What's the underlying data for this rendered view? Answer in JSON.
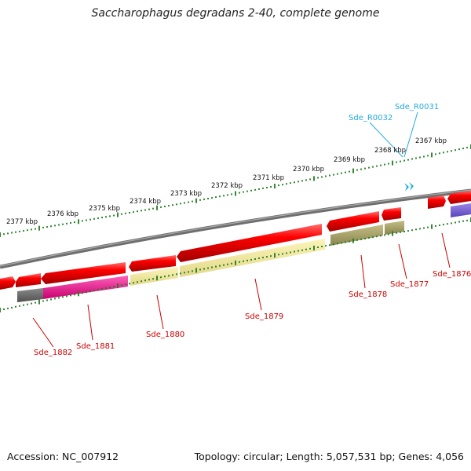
{
  "title": "Saccharophagus degradans 2-40, complete genome",
  "accession_text": "Accession: NC_007912",
  "summary_text": "Topology: circular; Length: 5,057,531 bp; Genes: 4,056",
  "colors": {
    "backbone": "#808080",
    "ruler": "#1e7a1e",
    "gene_label": "#cc0000",
    "rna_label": "#22aadd"
  },
  "kbp_labels": [
    "2377 kbp",
    "2376 kbp",
    "2375 kbp",
    "2374 kbp",
    "2373 kbp",
    "2372 kbp",
    "2371 kbp",
    "2370 kbp",
    "2369 kbp",
    "2368 kbp",
    "2367 kbp"
  ],
  "gene_labels": [
    "Sde_1882",
    "Sde_1881",
    "Sde_1880",
    "Sde_1879",
    "Sde_1878",
    "Sde_1877",
    "Sde_1876"
  ],
  "rna_labels": [
    "Sde_R0032",
    "Sde_R0031"
  ]
}
